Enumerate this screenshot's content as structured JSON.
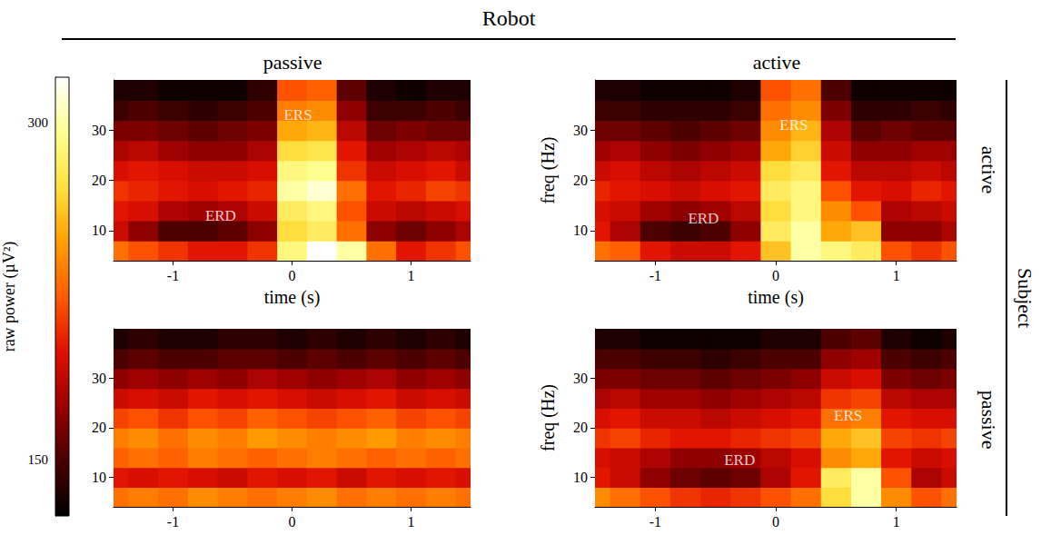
{
  "title": "Robot",
  "column_titles": [
    "passive",
    "active"
  ],
  "row_group": "Subject",
  "row_titles": [
    "active",
    "passive"
  ],
  "colorbar": {
    "label": "raw power (µV²)",
    "range": [
      125,
      320
    ],
    "ticks": [
      150,
      300
    ]
  },
  "chart_data": [
    {
      "type": "heatmap",
      "xlabel": "time (s)",
      "x": [
        -1.5,
        -1.25,
        -1,
        -0.75,
        -0.5,
        -0.25,
        0,
        0.25,
        0.5,
        0.75,
        1,
        1.25,
        1.5
      ],
      "y": [
        6,
        10,
        14,
        18,
        22,
        26,
        30,
        34,
        38
      ],
      "xlim": [
        -1.5,
        1.5
      ],
      "ylim": [
        4,
        40
      ],
      "xticks": [
        -1,
        0,
        1
      ],
      "yticks": [
        10,
        20,
        30
      ],
      "values": [
        [
          230,
          220,
          210,
          200,
          200,
          210,
          290,
          320,
          300,
          230,
          200,
          210,
          220
        ],
        [
          190,
          170,
          150,
          150,
          155,
          170,
          270,
          280,
          230,
          170,
          160,
          170,
          180
        ],
        [
          200,
          195,
          180,
          175,
          180,
          190,
          280,
          290,
          220,
          190,
          185,
          190,
          195
        ],
        [
          210,
          205,
          200,
          195,
          200,
          205,
          300,
          310,
          230,
          200,
          205,
          215,
          210
        ],
        [
          195,
          200,
          195,
          190,
          190,
          195,
          290,
          295,
          210,
          190,
          195,
          200,
          190
        ],
        [
          180,
          185,
          175,
          170,
          170,
          180,
          270,
          275,
          200,
          175,
          180,
          185,
          180
        ],
        [
          165,
          165,
          160,
          155,
          160,
          165,
          250,
          255,
          185,
          160,
          165,
          160,
          160
        ],
        [
          145,
          150,
          145,
          140,
          145,
          150,
          235,
          240,
          170,
          145,
          145,
          150,
          145
        ],
        [
          135,
          135,
          130,
          130,
          130,
          140,
          220,
          225,
          155,
          135,
          130,
          135,
          135
        ]
      ],
      "annotations": [
        {
          "text": "ERS",
          "x": 0.05,
          "y": 33
        },
        {
          "text": "ERD",
          "x": -0.6,
          "y": 13
        }
      ]
    },
    {
      "type": "heatmap",
      "xlabel": "time (s)",
      "ylabel": "freq (Hz)",
      "x": [
        -1.5,
        -1.25,
        -1,
        -0.75,
        -0.5,
        -0.25,
        0,
        0.25,
        0.5,
        0.75,
        1,
        1.25,
        1.5
      ],
      "y": [
        6,
        10,
        14,
        18,
        22,
        26,
        30,
        34,
        38
      ],
      "xlim": [
        -1.5,
        1.5
      ],
      "ylim": [
        4,
        40
      ],
      "xticks": [
        -1,
        0,
        1
      ],
      "yticks": [
        10,
        20,
        30
      ],
      "values": [
        [
          230,
          225,
          200,
          190,
          190,
          200,
          260,
          300,
          290,
          280,
          220,
          210,
          220
        ],
        [
          200,
          180,
          150,
          145,
          150,
          170,
          280,
          300,
          250,
          260,
          170,
          170,
          180
        ],
        [
          195,
          190,
          175,
          170,
          175,
          185,
          270,
          290,
          240,
          220,
          180,
          185,
          190
        ],
        [
          205,
          200,
          195,
          190,
          195,
          200,
          280,
          290,
          220,
          200,
          195,
          205,
          200
        ],
        [
          190,
          195,
          185,
          180,
          185,
          190,
          270,
          280,
          200,
          185,
          185,
          190,
          185
        ],
        [
          175,
          180,
          170,
          165,
          170,
          175,
          250,
          265,
          190,
          170,
          170,
          175,
          175
        ],
        [
          160,
          160,
          155,
          150,
          155,
          160,
          240,
          255,
          180,
          155,
          160,
          155,
          155
        ],
        [
          145,
          145,
          140,
          140,
          140,
          145,
          230,
          240,
          165,
          140,
          140,
          145,
          140
        ],
        [
          135,
          135,
          130,
          130,
          130,
          135,
          220,
          230,
          150,
          130,
          130,
          130,
          130
        ]
      ],
      "annotations": [
        {
          "text": "ERS",
          "x": 0.15,
          "y": 31
        },
        {
          "text": "ERD",
          "x": -0.6,
          "y": 12.5
        }
      ]
    },
    {
      "type": "heatmap",
      "x": [
        -1.5,
        -1.25,
        -1,
        -0.75,
        -0.5,
        -0.25,
        0,
        0.25,
        0.5,
        0.75,
        1,
        1.25,
        1.5
      ],
      "y": [
        6,
        10,
        14,
        18,
        22,
        26,
        30,
        34,
        38
      ],
      "xlim": [
        -1.5,
        1.5
      ],
      "ylim": [
        4,
        40
      ],
      "xticks": [
        -1,
        0,
        1
      ],
      "yticks": [
        10,
        20,
        30
      ],
      "values": [
        [
          230,
          235,
          230,
          240,
          235,
          230,
          235,
          240,
          230,
          235,
          230,
          235,
          230
        ],
        [
          200,
          195,
          200,
          195,
          190,
          200,
          195,
          200,
          190,
          200,
          195,
          200,
          195
        ],
        [
          225,
          230,
          225,
          235,
          230,
          225,
          230,
          235,
          230,
          225,
          230,
          225,
          230
        ],
        [
          235,
          240,
          230,
          240,
          235,
          245,
          240,
          235,
          240,
          245,
          235,
          240,
          235
        ],
        [
          215,
          220,
          210,
          220,
          215,
          225,
          220,
          215,
          220,
          225,
          215,
          220,
          215
        ],
        [
          190,
          195,
          190,
          200,
          195,
          200,
          195,
          190,
          195,
          200,
          190,
          195,
          190
        ],
        [
          170,
          175,
          170,
          175,
          170,
          180,
          175,
          170,
          175,
          180,
          170,
          175,
          170
        ],
        [
          150,
          155,
          150,
          150,
          155,
          155,
          150,
          155,
          150,
          155,
          150,
          155,
          150
        ],
        [
          135,
          140,
          135,
          135,
          140,
          140,
          135,
          140,
          135,
          140,
          135,
          140,
          135
        ]
      ],
      "annotations": []
    },
    {
      "type": "heatmap",
      "ylabel": "freq (Hz)",
      "x": [
        -1.5,
        -1.25,
        -1,
        -0.75,
        -0.5,
        -0.25,
        0,
        0.25,
        0.5,
        0.75,
        1,
        1.25,
        1.5
      ],
      "y": [
        6,
        10,
        14,
        18,
        22,
        26,
        30,
        34,
        38
      ],
      "xlim": [
        -1.5,
        1.5
      ],
      "ylim": [
        4,
        40
      ],
      "xticks": [
        -1,
        0,
        1
      ],
      "yticks": [
        10,
        20,
        30
      ],
      "values": [
        [
          240,
          230,
          220,
          210,
          205,
          210,
          220,
          230,
          270,
          300,
          240,
          220,
          230
        ],
        [
          200,
          190,
          170,
          160,
          155,
          160,
          180,
          200,
          280,
          300,
          220,
          180,
          190
        ],
        [
          195,
          190,
          180,
          170,
          170,
          175,
          185,
          195,
          240,
          250,
          200,
          190,
          195
        ],
        [
          210,
          215,
          205,
          200,
          200,
          205,
          210,
          215,
          250,
          260,
          215,
          210,
          215
        ],
        [
          195,
          200,
          190,
          190,
          185,
          190,
          195,
          200,
          230,
          235,
          200,
          195,
          195
        ],
        [
          180,
          185,
          175,
          175,
          170,
          175,
          180,
          185,
          210,
          215,
          185,
          180,
          180
        ],
        [
          165,
          165,
          160,
          160,
          155,
          160,
          165,
          170,
          190,
          195,
          165,
          160,
          165
        ],
        [
          150,
          150,
          145,
          145,
          140,
          145,
          150,
          150,
          170,
          175,
          150,
          145,
          150
        ],
        [
          135,
          135,
          130,
          130,
          130,
          130,
          135,
          135,
          150,
          155,
          135,
          130,
          135
        ]
      ],
      "annotations": [
        {
          "text": "ERS",
          "x": 0.6,
          "y": 22.5
        },
        {
          "text": "ERD",
          "x": -0.3,
          "y": 13.5
        }
      ]
    }
  ]
}
